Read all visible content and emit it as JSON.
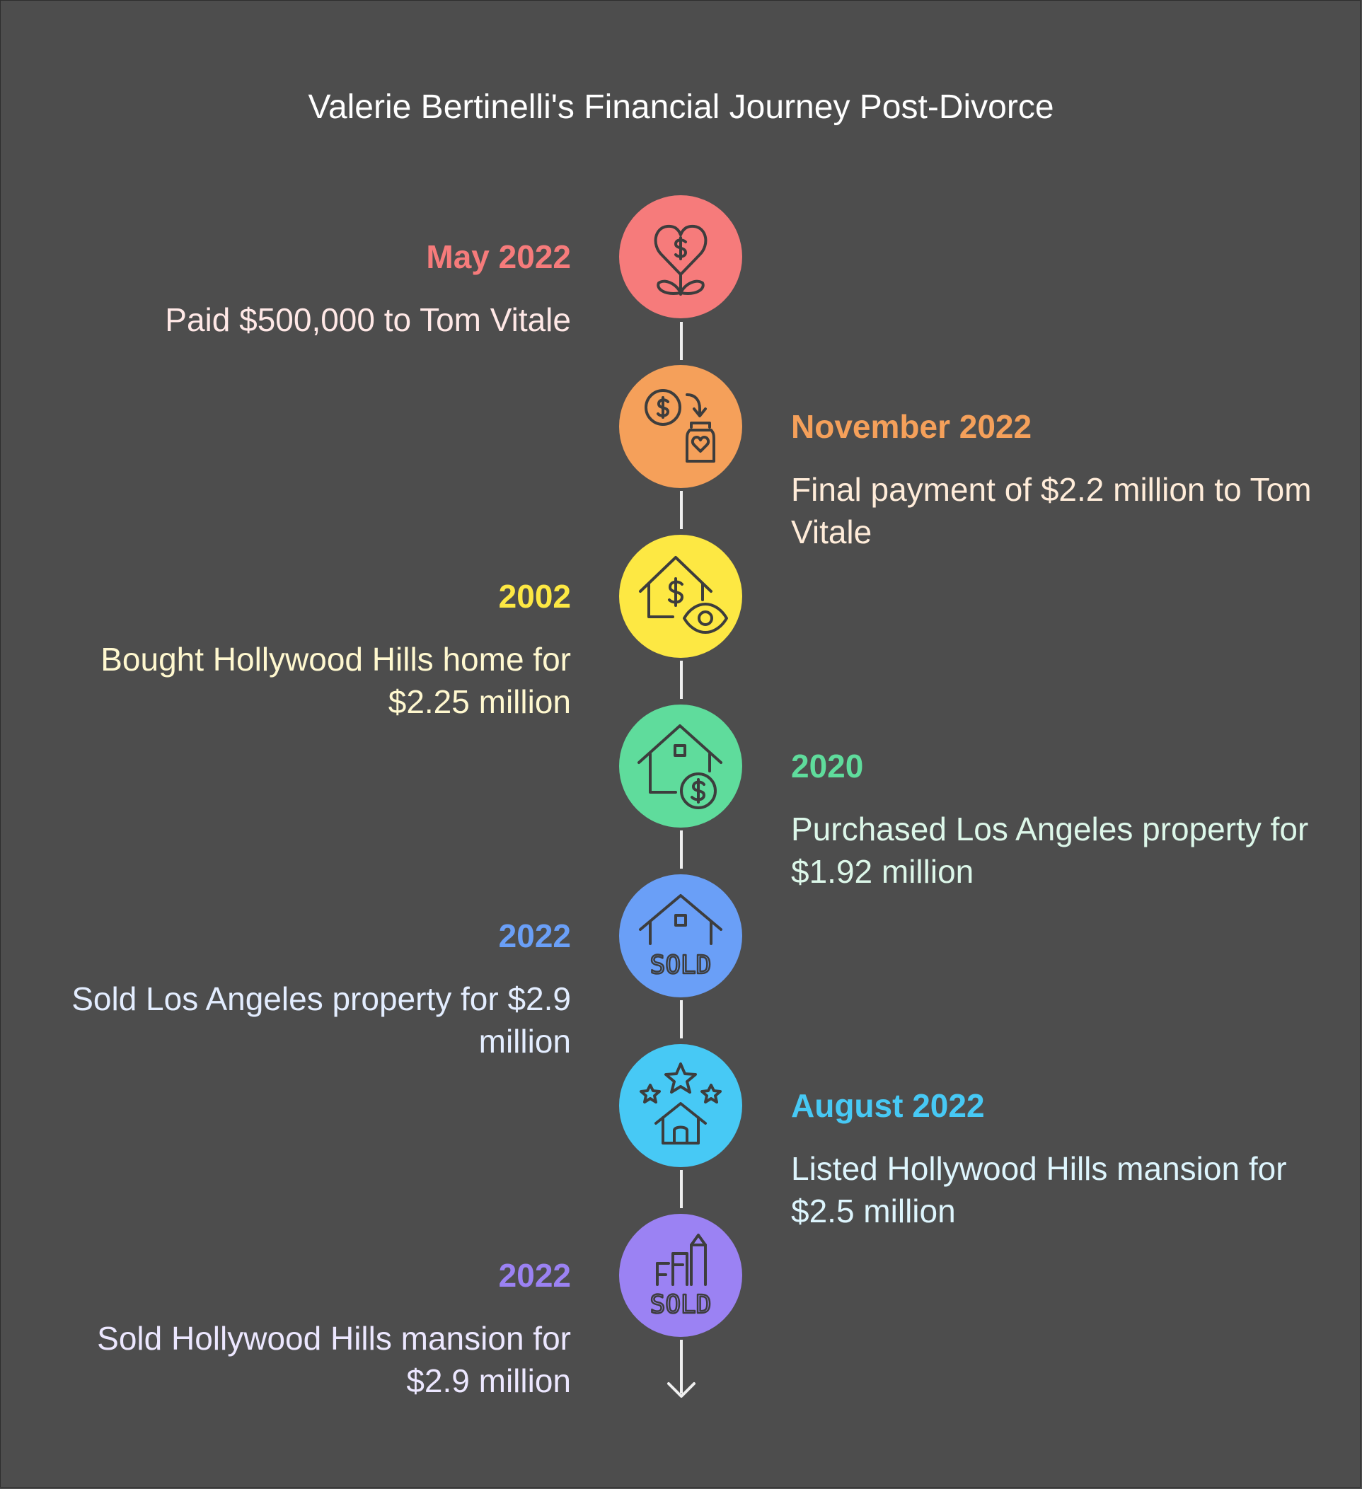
{
  "title": "Valerie Bertinelli's Financial Journey Post-Divorce",
  "events": [
    {
      "date": "May 2022",
      "description": "Paid $500,000 to Tom Vitale",
      "color": "#f67b7b",
      "text_color": "#ffe8e6",
      "icon": "heart-dollar-growth-icon"
    },
    {
      "date": "November 2022",
      "description": "Final payment of $2.2 million to Tom Vitale",
      "color": "#f5a05a",
      "text_color": "#ffecd9",
      "icon": "money-transfer-jar-icon"
    },
    {
      "date": "2002",
      "description": "Bought Hollywood Hills home for $2.25 million",
      "color": "#fde843",
      "text_color": "#fff8cf",
      "icon": "house-dollar-eye-icon"
    },
    {
      "date": "2020",
      "description": "Purchased Los Angeles property for $1.92 million",
      "color": "#5fdc9c",
      "text_color": "#dcf7e9",
      "icon": "house-dollar-coin-icon"
    },
    {
      "date": "2022",
      "description": "Sold Los Angeles property for $2.9 million",
      "color": "#6a9ff7",
      "text_color": "#e3edff",
      "icon": "house-sold-icon"
    },
    {
      "date": "August 2022",
      "description": "Listed Hollywood Hills mansion for $2.5 million",
      "color": "#47c9f5",
      "text_color": "#ddf5fd",
      "icon": "stars-house-icon"
    },
    {
      "date": "2022",
      "description": "Sold Hollywood Hills mansion for $2.9 million",
      "color": "#9b82f3",
      "text_color": "#ece7ff",
      "icon": "building-sold-icon"
    }
  ]
}
